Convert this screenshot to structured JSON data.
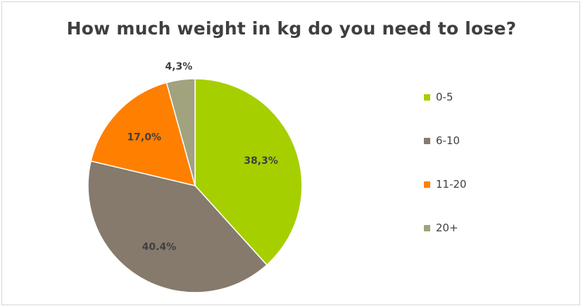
{
  "chart_data": {
    "type": "pie",
    "title": "How much weight in kg do you need to lose?",
    "legend_position": "right",
    "slices": [
      {
        "name": "0-5",
        "value": 38.3,
        "label": "38,3%",
        "color": "#a6cf00"
      },
      {
        "name": "6-10",
        "value": 40.4,
        "label": "40.4%",
        "color": "#857a6c"
      },
      {
        "name": "11-20",
        "value": 17.0,
        "label": "17,0%",
        "color": "#ff7f00"
      },
      {
        "name": "20+",
        "value": 4.3,
        "label": "4,3%",
        "color": "#a1a27e"
      }
    ]
  }
}
